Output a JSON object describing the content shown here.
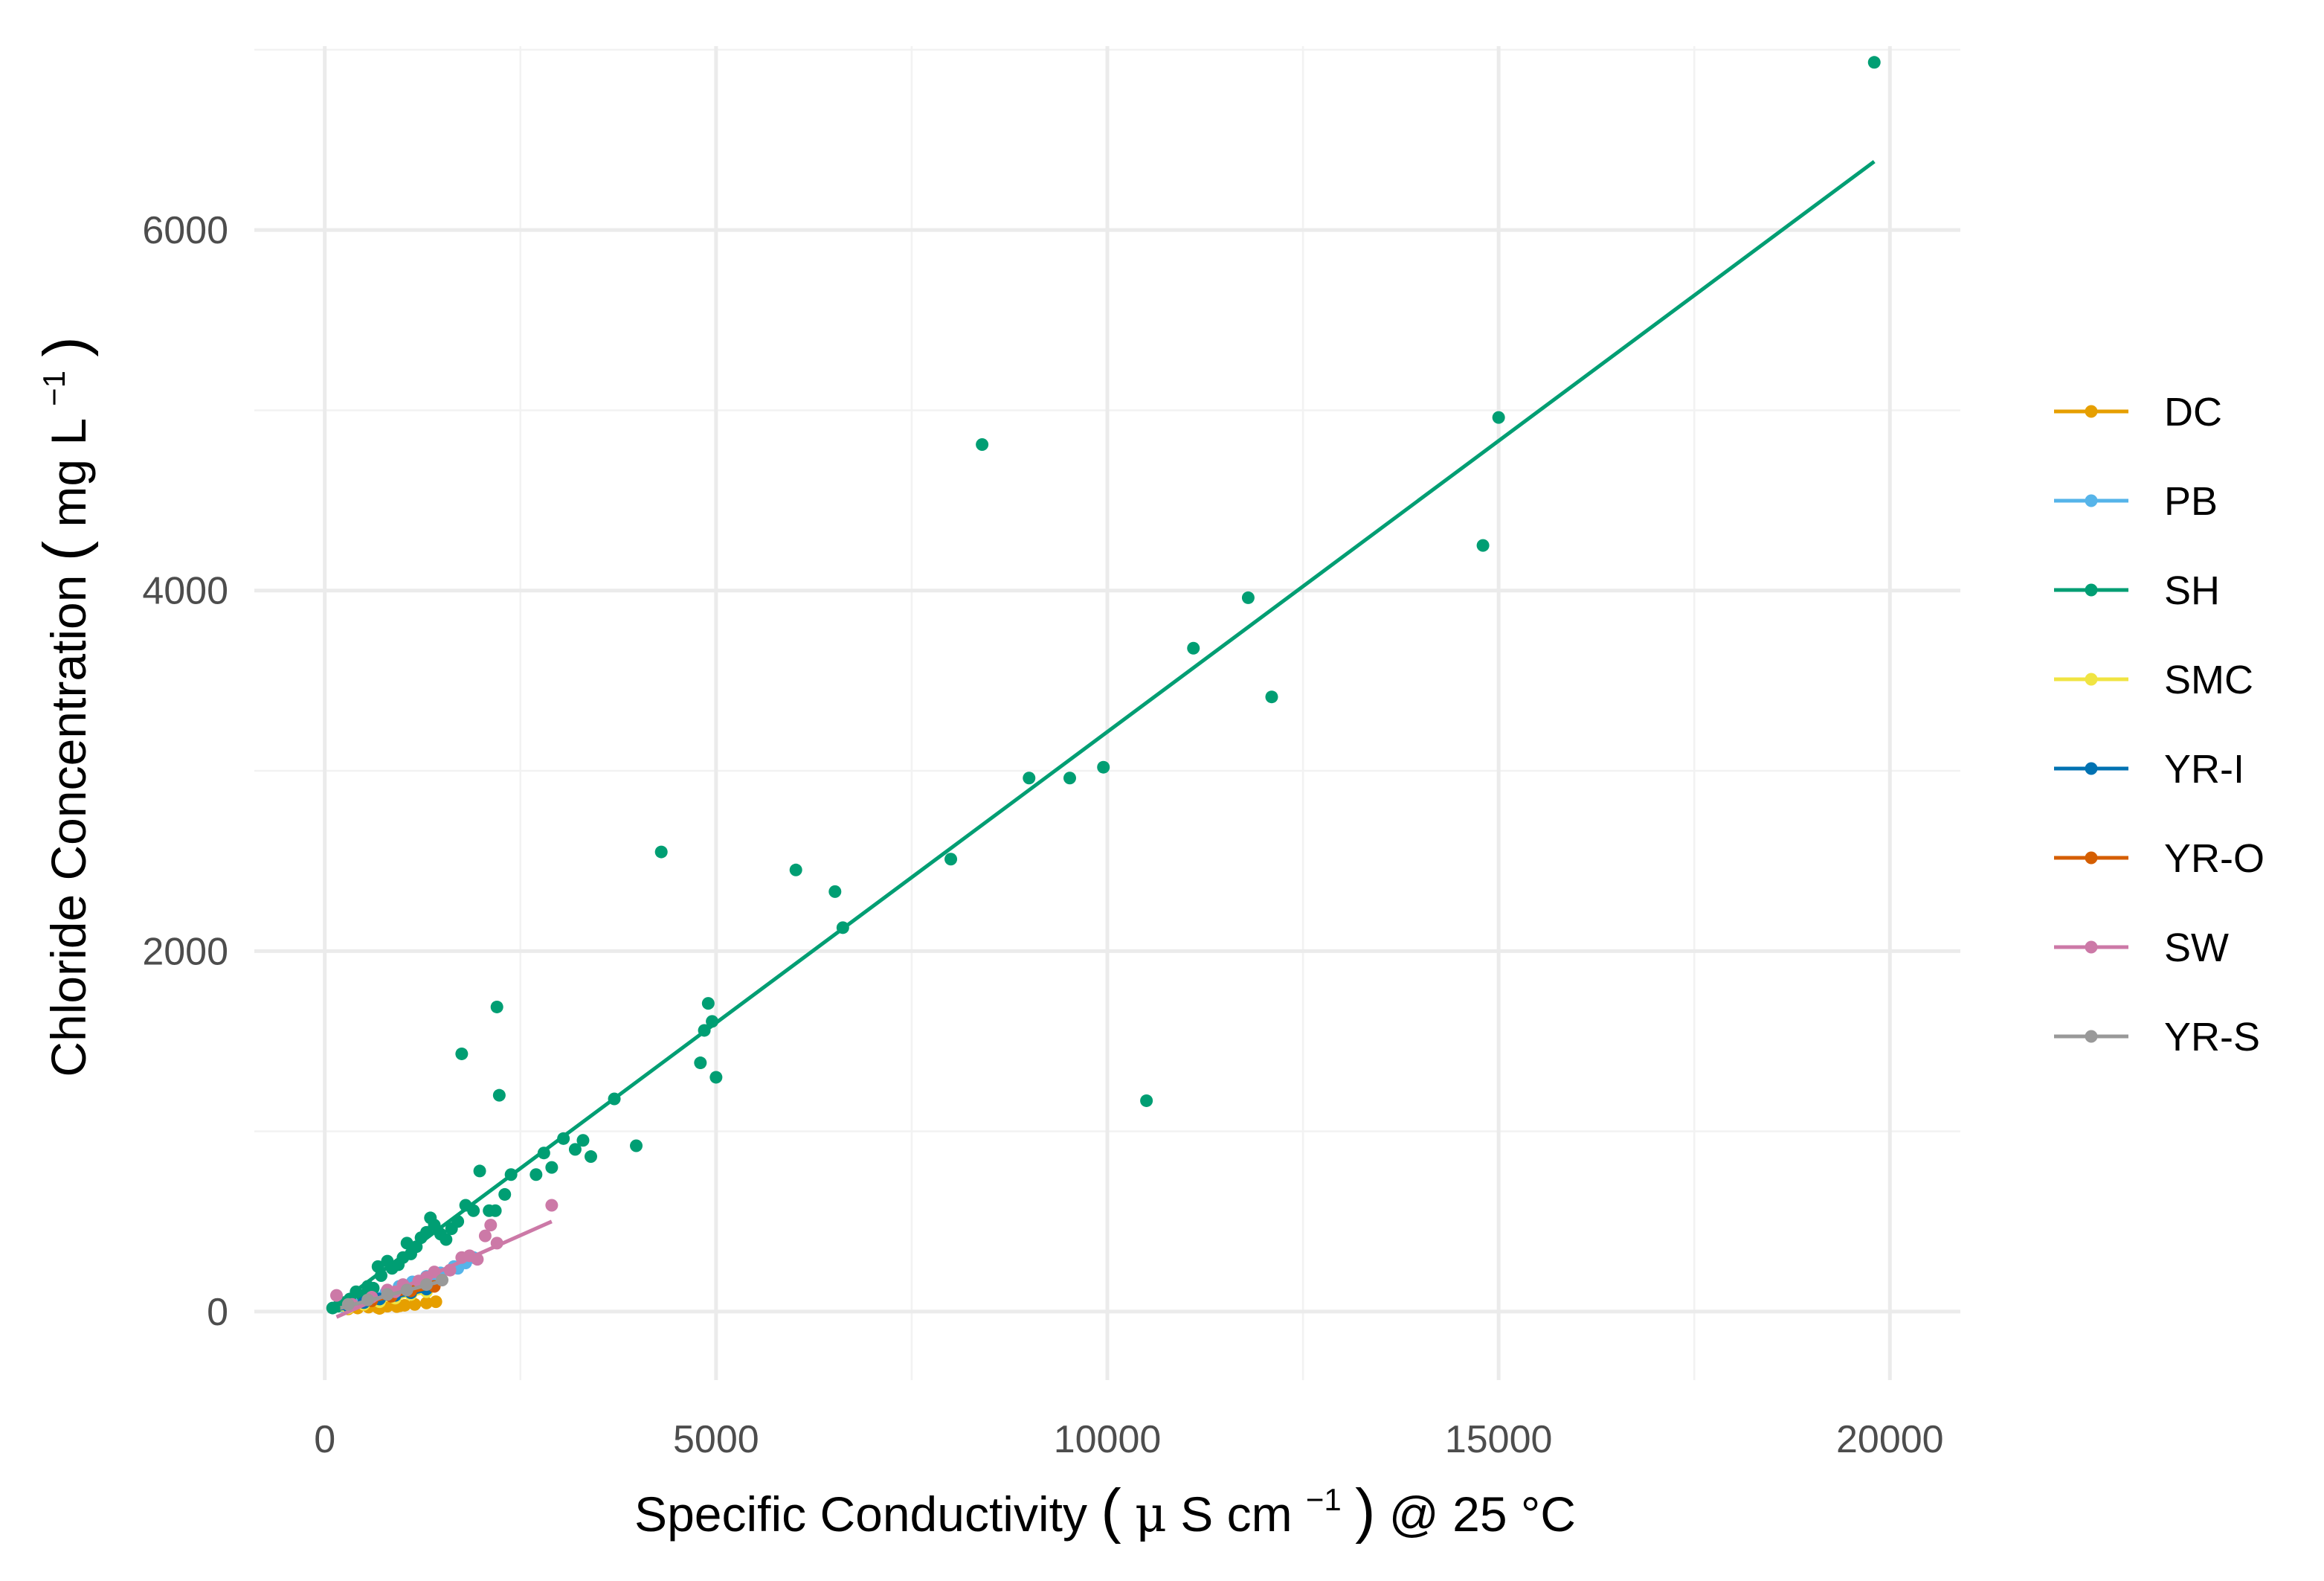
{
  "chart_data": {
    "type": "scatter",
    "xlabel": {
      "prefix": "Specific Conductivity ",
      "paren_open": "(",
      "unit_mu": "μ",
      "unit_main": " S cm",
      "unit_sup": "−1",
      "paren_close": ")",
      "suffix": " @ 25 °C"
    },
    "ylabel": {
      "prefix": "Chloride Concentration ",
      "paren_open": "(",
      "unit_main": "mg L",
      "unit_sup": "−1",
      "paren_close": ")"
    },
    "xlim": [
      -900,
      20900
    ],
    "ylim": [
      -380,
      7020
    ],
    "x_ticks": [
      0,
      5000,
      10000,
      15000,
      20000
    ],
    "x_tick_labels": [
      "0",
      "5000",
      "10000",
      "15000",
      "20000"
    ],
    "x_minor_ticks": [
      2500,
      7500,
      12500,
      17500
    ],
    "y_ticks": [
      0,
      2000,
      4000,
      6000
    ],
    "y_tick_labels": [
      "0",
      "2000",
      "4000",
      "6000"
    ],
    "y_minor_ticks": [
      1000,
      3000,
      5000,
      7000
    ],
    "grid": true,
    "legend_position": "right",
    "series": [
      {
        "name": "DC",
        "color": "#E69F00",
        "fit": [
          [
            250,
            10
          ],
          [
            1420,
            45
          ]
        ],
        "points": [
          [
            300,
            15
          ],
          [
            420,
            20
          ],
          [
            560,
            25
          ],
          [
            680,
            22
          ],
          [
            800,
            30
          ],
          [
            920,
            28
          ],
          [
            1020,
            35
          ],
          [
            1150,
            40
          ],
          [
            1300,
            48
          ],
          [
            1420,
            55
          ],
          [
            700,
            18
          ],
          [
            960,
            32
          ]
        ]
      },
      {
        "name": "PB",
        "color": "#56B4E9",
        "fit": [
          [
            150,
            10
          ],
          [
            1920,
            300
          ]
        ],
        "points": [
          [
            250,
            25
          ],
          [
            420,
            55
          ],
          [
            600,
            80
          ],
          [
            780,
            105
          ],
          [
            950,
            140
          ],
          [
            1120,
            165
          ],
          [
            1300,
            195
          ],
          [
            1480,
            215
          ],
          [
            1650,
            250
          ],
          [
            1800,
            270
          ],
          [
            1900,
            300
          ],
          [
            1100,
            130
          ],
          [
            1400,
            200
          ],
          [
            1700,
            240
          ]
        ]
      },
      {
        "name": "SH",
        "color": "#009E73",
        "fit": [
          [
            100,
            20
          ],
          [
            19800,
            6380
          ]
        ],
        "points": [
          [
            100,
            20
          ],
          [
            170,
            30
          ],
          [
            250,
            50
          ],
          [
            320,
            70
          ],
          [
            400,
            110
          ],
          [
            480,
            90
          ],
          [
            550,
            140
          ],
          [
            620,
            130
          ],
          [
            680,
            250
          ],
          [
            720,
            200
          ],
          [
            800,
            280
          ],
          [
            860,
            240
          ],
          [
            940,
            260
          ],
          [
            1000,
            300
          ],
          [
            1050,
            380
          ],
          [
            1100,
            320
          ],
          [
            1170,
            360
          ],
          [
            1230,
            410
          ],
          [
            1300,
            440
          ],
          [
            1350,
            520
          ],
          [
            1400,
            480
          ],
          [
            1480,
            430
          ],
          [
            1550,
            400
          ],
          [
            1620,
            460
          ],
          [
            1700,
            500
          ],
          [
            1750,
            1430
          ],
          [
            1800,
            590
          ],
          [
            1900,
            560
          ],
          [
            1980,
            780
          ],
          [
            2100,
            560
          ],
          [
            2180,
            560
          ],
          [
            2200,
            1690
          ],
          [
            2230,
            1200
          ],
          [
            2300,
            650
          ],
          [
            2380,
            760
          ],
          [
            2700,
            760
          ],
          [
            2800,
            880
          ],
          [
            2900,
            800
          ],
          [
            3050,
            960
          ],
          [
            3200,
            900
          ],
          [
            3300,
            950
          ],
          [
            3400,
            860
          ],
          [
            3700,
            1180
          ],
          [
            3980,
            920
          ],
          [
            4300,
            2550
          ],
          [
            4800,
            1380
          ],
          [
            4850,
            1560
          ],
          [
            4900,
            1710
          ],
          [
            4950,
            1610
          ],
          [
            5000,
            1300
          ],
          [
            6020,
            2450
          ],
          [
            6520,
            2330
          ],
          [
            6620,
            2130
          ],
          [
            8000,
            2510
          ],
          [
            8400,
            4810
          ],
          [
            9000,
            2960
          ],
          [
            9520,
            2960
          ],
          [
            9950,
            3020
          ],
          [
            10500,
            1170
          ],
          [
            11100,
            3680
          ],
          [
            11800,
            3960
          ],
          [
            12100,
            3410
          ],
          [
            14800,
            4250
          ],
          [
            15000,
            4960
          ],
          [
            19800,
            6930
          ]
        ]
      },
      {
        "name": "SMC",
        "color": "#F0E442",
        "fit": [
          [
            200,
            10
          ],
          [
            1300,
            110
          ]
        ],
        "points": [
          [
            300,
            20
          ],
          [
            500,
            40
          ],
          [
            700,
            55
          ],
          [
            900,
            75
          ],
          [
            1100,
            95
          ],
          [
            1300,
            110
          ]
        ]
      },
      {
        "name": "YR-I",
        "color": "#0072B2",
        "fit": [
          [
            200,
            15
          ],
          [
            1300,
            120
          ]
        ],
        "points": [
          [
            300,
            30
          ],
          [
            500,
            50
          ],
          [
            700,
            70
          ],
          [
            900,
            90
          ],
          [
            1100,
            105
          ],
          [
            1300,
            125
          ]
        ]
      },
      {
        "name": "YR-O",
        "color": "#D55E00",
        "fit": [
          [
            200,
            20
          ],
          [
            1400,
            140
          ]
        ],
        "points": [
          [
            350,
            35
          ],
          [
            600,
            60
          ],
          [
            850,
            85
          ],
          [
            1100,
            115
          ],
          [
            1400,
            140
          ]
        ]
      },
      {
        "name": "SW",
        "color": "#CC79A7",
        "fit": [
          [
            150,
            -30
          ],
          [
            2900,
            500
          ]
        ],
        "points": [
          [
            150,
            90
          ],
          [
            350,
            40
          ],
          [
            600,
            80
          ],
          [
            800,
            120
          ],
          [
            1000,
            150
          ],
          [
            1200,
            170
          ],
          [
            1400,
            220
          ],
          [
            1600,
            230
          ],
          [
            1750,
            300
          ],
          [
            1850,
            310
          ],
          [
            1950,
            290
          ],
          [
            2050,
            420
          ],
          [
            2120,
            480
          ],
          [
            2200,
            380
          ],
          [
            2900,
            590
          ],
          [
            900,
            110
          ],
          [
            1300,
            190
          ]
        ]
      },
      {
        "name": "YR-S",
        "color": "#999999",
        "fit": [
          [
            200,
            20
          ],
          [
            1500,
            170
          ]
        ],
        "points": [
          [
            300,
            40
          ],
          [
            550,
            65
          ],
          [
            800,
            95
          ],
          [
            1050,
            120
          ],
          [
            1300,
            150
          ],
          [
            1500,
            175
          ]
        ]
      }
    ]
  }
}
